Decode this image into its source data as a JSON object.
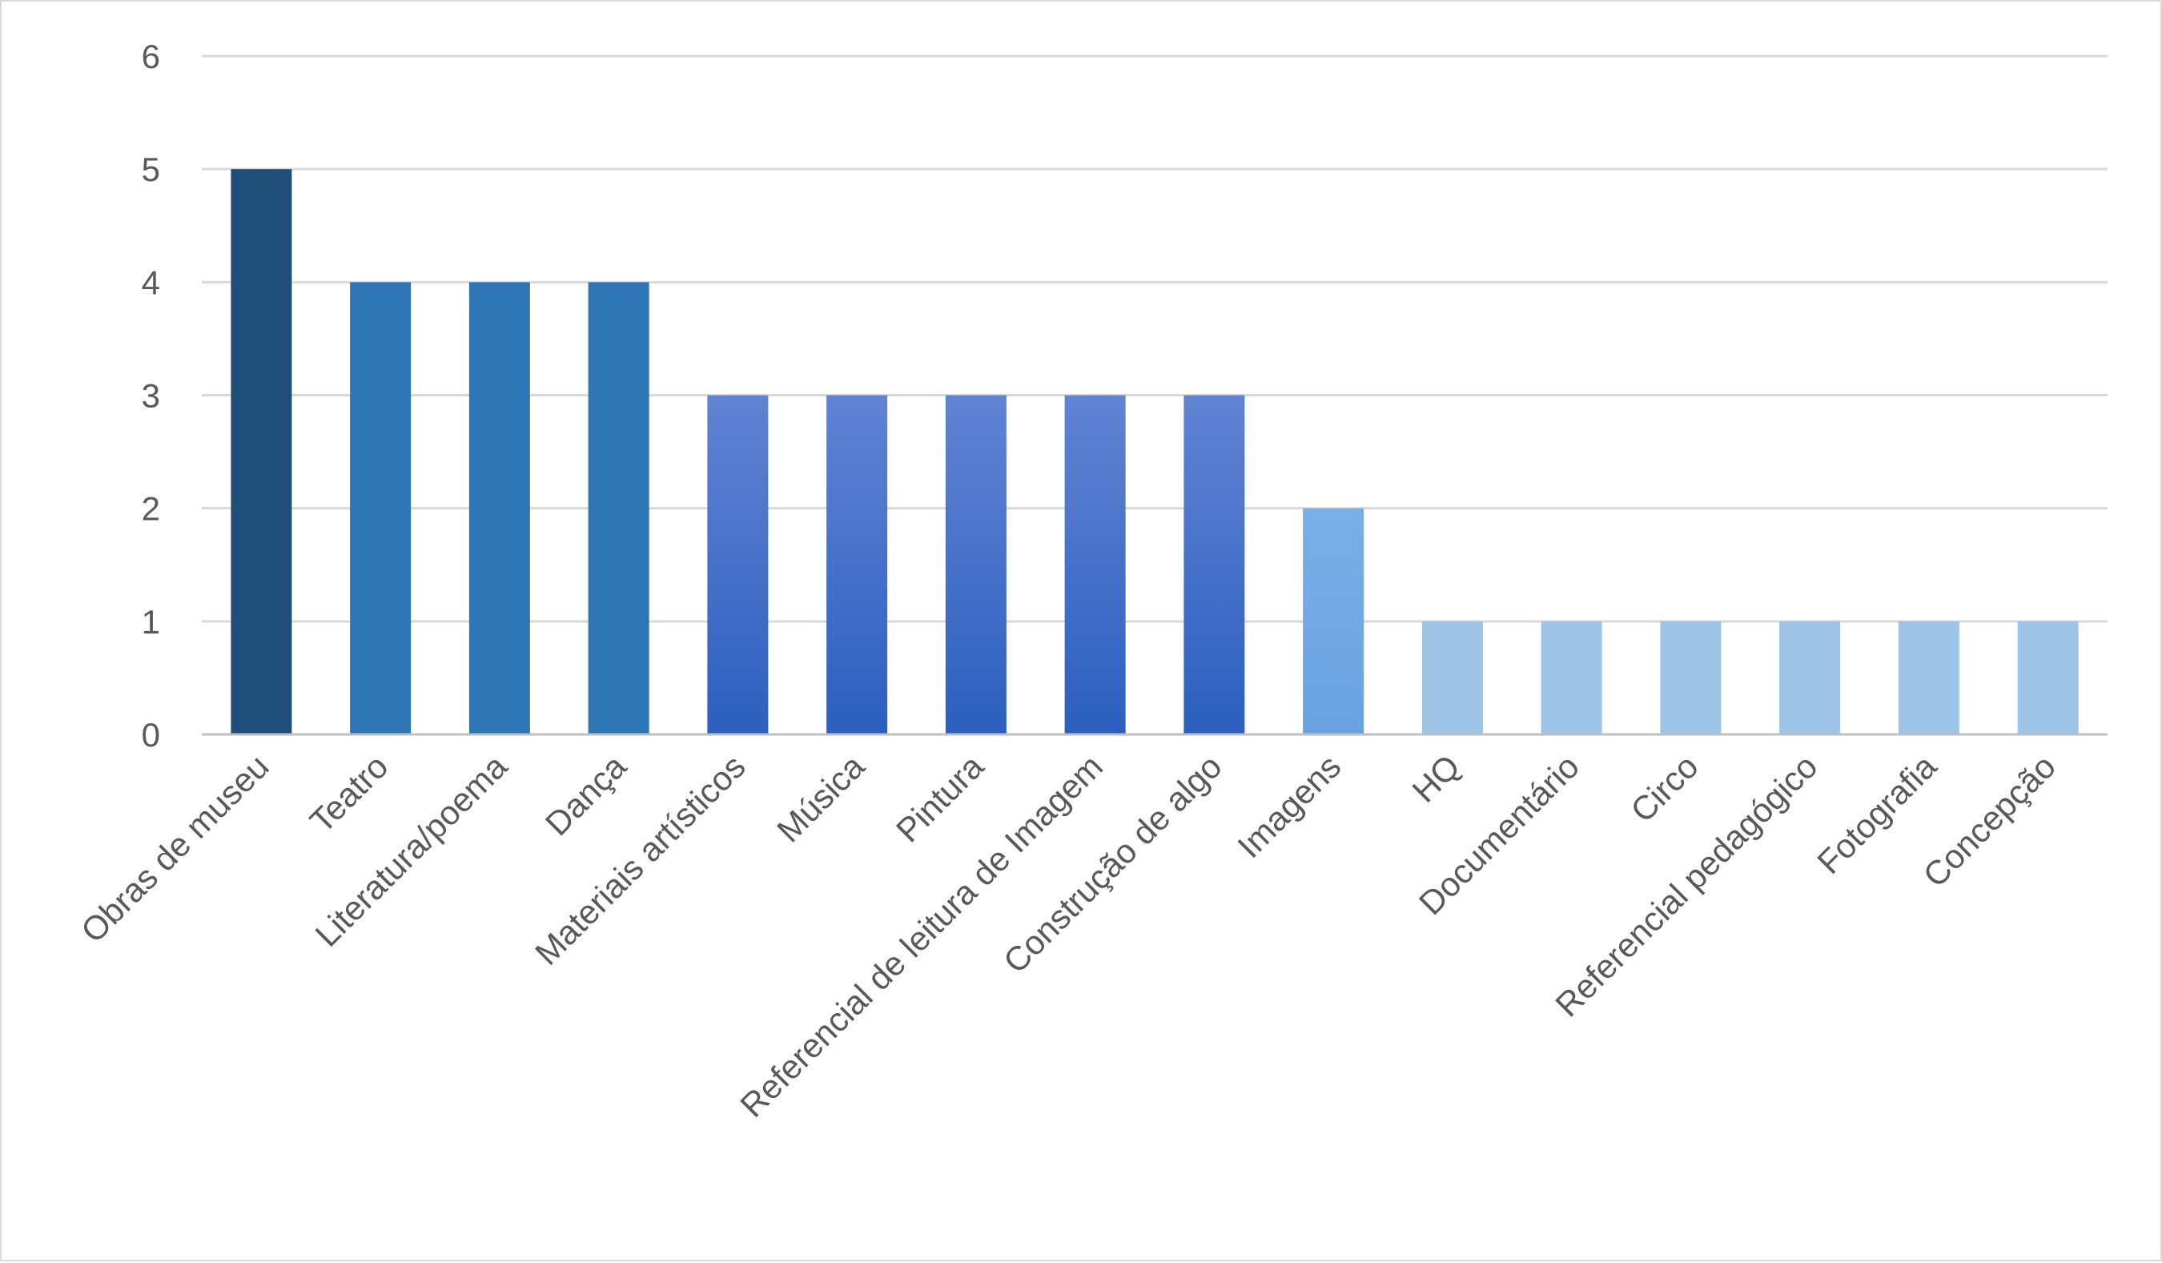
{
  "chart_data": {
    "type": "bar",
    "title": "",
    "xlabel": "",
    "ylabel": "",
    "ylim": [
      0,
      6
    ],
    "yticks": [
      0,
      1,
      2,
      3,
      4,
      5,
      6
    ],
    "grid": true,
    "legend": "none",
    "categories": [
      "Obras de museu",
      "Teatro",
      "Literatura/poema",
      "Dança",
      "Materiais artísticos",
      "Música",
      "Pintura",
      "Referencial de leitura de Imagem",
      "Construção de algo",
      "Imagens",
      "HQ",
      "Documentário",
      "Circo",
      "Referencial pedagógico",
      "Fotografia",
      "Concepção"
    ],
    "values": [
      5,
      4,
      4,
      4,
      3,
      3,
      3,
      3,
      3,
      2,
      1,
      1,
      1,
      1,
      1,
      1
    ],
    "colors_by_value": {
      "5": [
        "#1f4e79",
        "#1f4e79"
      ],
      "4": [
        "#2e75b6",
        "#2e75b6"
      ],
      "3": [
        "#6183d3",
        "#2c5fbf"
      ],
      "2": [
        "#7aaee8",
        "#6aa2e2"
      ],
      "1": [
        "#9dc3e6",
        "#9dc3e6"
      ]
    },
    "gridline_color": "#d9d9d9",
    "axis_color": "#bfbfbf"
  }
}
